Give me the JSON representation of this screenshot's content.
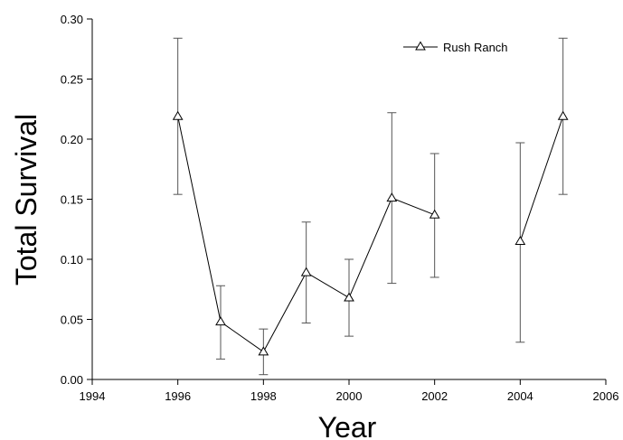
{
  "chart_data": {
    "type": "line",
    "xlabel": "Year",
    "ylabel": "Total Survival",
    "xlim": [
      1994,
      2006
    ],
    "ylim": [
      0,
      0.3
    ],
    "x_ticks": [
      1994,
      1996,
      1998,
      2000,
      2002,
      2004,
      2006
    ],
    "y_ticks": [
      "0.00",
      "0.05",
      "0.10",
      "0.15",
      "0.20",
      "0.25",
      "0.30"
    ],
    "legend_position": "top-right",
    "grid": false,
    "series": [
      {
        "name": "Rush Ranch",
        "marker": "open-triangle",
        "color": "#000000",
        "segments": [
          [
            {
              "x": 1996,
              "y": 0.219,
              "lower": 0.154,
              "upper": 0.284
            },
            {
              "x": 1997,
              "y": 0.048,
              "lower": 0.017,
              "upper": 0.078
            },
            {
              "x": 1998,
              "y": 0.023,
              "lower": 0.004,
              "upper": 0.042
            },
            {
              "x": 1999,
              "y": 0.089,
              "lower": 0.047,
              "upper": 0.131
            },
            {
              "x": 2000,
              "y": 0.068,
              "lower": 0.036,
              "upper": 0.1
            },
            {
              "x": 2001,
              "y": 0.151,
              "lower": 0.08,
              "upper": 0.222
            },
            {
              "x": 2002,
              "y": 0.137,
              "lower": 0.085,
              "upper": 0.188
            }
          ],
          [
            {
              "x": 2004,
              "y": 0.115,
              "lower": 0.031,
              "upper": 0.197
            },
            {
              "x": 2005,
              "y": 0.219,
              "lower": 0.154,
              "upper": 0.284
            }
          ]
        ]
      }
    ]
  }
}
